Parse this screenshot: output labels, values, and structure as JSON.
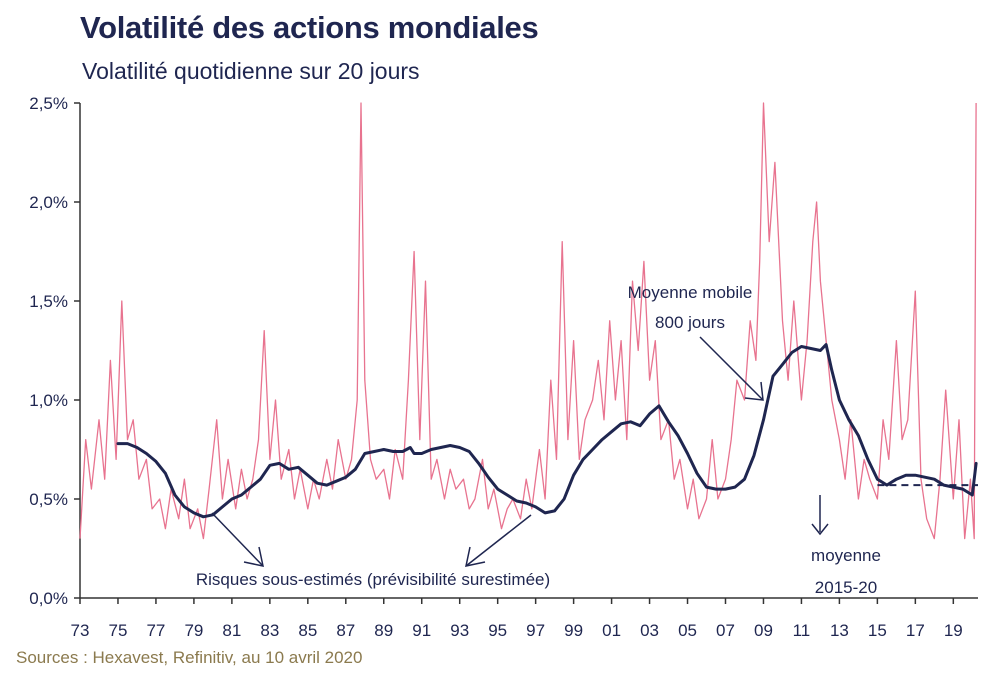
{
  "header": {
    "title": "Volatilité des actions mondiales",
    "subtitle": "Volatilité quotidienne sur 20 jours"
  },
  "footer": {
    "source": "Sources : Hexavest, Refinitiv, au 10 avril 2020"
  },
  "colors": {
    "daily": "#e8738f",
    "moving_average": "#1f2650",
    "text": "#1f2650",
    "source": "#8b7a4e"
  },
  "chart_data": {
    "type": "line",
    "title": "Volatilité des actions mondiales",
    "subtitle": "Volatilité quotidienne sur 20 jours",
    "xlim": [
      1973,
      2020.3
    ],
    "ylim": [
      0,
      2.5
    ],
    "grid": "none",
    "x_ticks": [
      1973,
      1975,
      1977,
      1979,
      1981,
      1983,
      1985,
      1987,
      1989,
      1991,
      1993,
      1995,
      1997,
      1999,
      2001,
      2003,
      2005,
      2007,
      2009,
      2011,
      2013,
      2015,
      2017,
      2019
    ],
    "x_tick_labels": [
      "73",
      "75",
      "77",
      "79",
      "81",
      "83",
      "85",
      "87",
      "89",
      "91",
      "93",
      "95",
      "97",
      "99",
      "01",
      "03",
      "05",
      "07",
      "09",
      "11",
      "13",
      "15",
      "17",
      "19"
    ],
    "y_ticks": [
      0,
      0.5,
      1.0,
      1.5,
      2.0,
      2.5
    ],
    "y_tick_labels": [
      "0,0%",
      "0,5%",
      "1,0%",
      "1,5%",
      "2,0%",
      "2,5%"
    ],
    "series": [
      {
        "name": "Volatilité quotidienne sur 20 jours",
        "style": "thin",
        "x": [
          1973.0,
          1973.3,
          1973.6,
          1974.0,
          1974.3,
          1974.6,
          1974.9,
          1975.2,
          1975.5,
          1975.8,
          1976.1,
          1976.5,
          1976.8,
          1977.2,
          1977.5,
          1977.8,
          1978.2,
          1978.5,
          1978.8,
          1979.2,
          1979.5,
          1979.8,
          1980.2,
          1980.5,
          1980.8,
          1981.2,
          1981.5,
          1981.8,
          1982.1,
          1982.4,
          1982.7,
          1983.0,
          1983.3,
          1983.6,
          1984.0,
          1984.3,
          1984.6,
          1985.0,
          1985.3,
          1985.6,
          1986.0,
          1986.3,
          1986.6,
          1987.0,
          1987.3,
          1987.6,
          1987.8,
          1988.0,
          1988.3,
          1988.6,
          1989.0,
          1989.3,
          1989.6,
          1990.0,
          1990.3,
          1990.6,
          1990.9,
          1991.2,
          1991.5,
          1991.8,
          1992.2,
          1992.5,
          1992.8,
          1993.2,
          1993.5,
          1993.8,
          1994.2,
          1994.5,
          1994.8,
          1995.2,
          1995.5,
          1995.8,
          1996.2,
          1996.5,
          1996.8,
          1997.2,
          1997.5,
          1997.8,
          1998.1,
          1998.4,
          1998.7,
          1999.0,
          1999.3,
          1999.6,
          2000.0,
          2000.3,
          2000.6,
          2000.9,
          2001.2,
          2001.5,
          2001.8,
          2002.1,
          2002.4,
          2002.7,
          2003.0,
          2003.3,
          2003.6,
          2004.0,
          2004.3,
          2004.6,
          2005.0,
          2005.3,
          2005.6,
          2006.0,
          2006.3,
          2006.6,
          2007.0,
          2007.3,
          2007.6,
          2008.0,
          2008.3,
          2008.6,
          2008.8,
          2009.0,
          2009.3,
          2009.6,
          2010.0,
          2010.3,
          2010.6,
          2011.0,
          2011.3,
          2011.6,
          2011.8,
          2012.0,
          2012.3,
          2012.6,
          2013.0,
          2013.3,
          2013.6,
          2014.0,
          2014.3,
          2014.6,
          2015.0,
          2015.3,
          2015.6,
          2016.0,
          2016.3,
          2016.6,
          2017.0,
          2017.3,
          2017.6,
          2018.0,
          2018.3,
          2018.6,
          2019.0,
          2019.3,
          2019.6,
          2019.9,
          2020.1,
          2020.2
        ],
        "y": [
          0.3,
          0.8,
          0.55,
          0.9,
          0.6,
          1.2,
          0.7,
          1.5,
          0.8,
          0.9,
          0.6,
          0.7,
          0.45,
          0.5,
          0.35,
          0.55,
          0.4,
          0.6,
          0.35,
          0.45,
          0.3,
          0.55,
          0.9,
          0.5,
          0.7,
          0.45,
          0.65,
          0.5,
          0.6,
          0.8,
          1.35,
          0.7,
          1.0,
          0.6,
          0.75,
          0.5,
          0.65,
          0.45,
          0.6,
          0.5,
          0.7,
          0.55,
          0.8,
          0.6,
          0.7,
          1.0,
          2.5,
          1.1,
          0.7,
          0.6,
          0.65,
          0.5,
          0.75,
          0.6,
          1.1,
          1.75,
          0.8,
          1.6,
          0.6,
          0.7,
          0.5,
          0.65,
          0.55,
          0.6,
          0.45,
          0.5,
          0.7,
          0.45,
          0.55,
          0.35,
          0.45,
          0.5,
          0.4,
          0.6,
          0.45,
          0.75,
          0.5,
          1.1,
          0.7,
          1.8,
          0.8,
          1.3,
          0.7,
          0.9,
          1.0,
          1.2,
          0.9,
          1.4,
          1.0,
          1.3,
          0.8,
          1.6,
          1.25,
          1.7,
          1.1,
          1.3,
          0.8,
          0.9,
          0.6,
          0.7,
          0.45,
          0.6,
          0.4,
          0.5,
          0.8,
          0.5,
          0.6,
          0.8,
          1.1,
          1.0,
          1.4,
          1.2,
          1.7,
          2.5,
          1.8,
          2.2,
          1.4,
          1.1,
          1.5,
          1.0,
          1.3,
          1.8,
          2.0,
          1.6,
          1.3,
          1.0,
          0.8,
          0.6,
          0.9,
          0.5,
          0.7,
          0.6,
          0.5,
          0.9,
          0.7,
          1.3,
          0.8,
          0.9,
          1.55,
          0.6,
          0.4,
          0.3,
          0.6,
          1.05,
          0.5,
          0.9,
          0.3,
          0.6,
          0.3,
          2.5
        ]
      },
      {
        "name": "Moyenne mobile 800 jours",
        "style": "thick",
        "x": [
          1975.0,
          1975.5,
          1976.0,
          1976.5,
          1977.0,
          1977.5,
          1978.0,
          1978.5,
          1979.0,
          1979.5,
          1980.0,
          1980.5,
          1981.0,
          1981.5,
          1982.0,
          1982.5,
          1983.0,
          1983.5,
          1984.0,
          1984.5,
          1985.0,
          1985.5,
          1986.0,
          1986.5,
          1987.0,
          1987.5,
          1988.0,
          1988.5,
          1989.0,
          1989.5,
          1990.0,
          1990.4,
          1990.6,
          1991.0,
          1991.5,
          1992.0,
          1992.5,
          1993.0,
          1993.5,
          1994.0,
          1994.5,
          1995.0,
          1995.5,
          1996.0,
          1996.5,
          1997.0,
          1997.5,
          1998.0,
          1998.5,
          1999.0,
          1999.5,
          2000.0,
          2000.5,
          2001.0,
          2001.5,
          2002.0,
          2002.5,
          2003.0,
          2003.5,
          2004.0,
          2004.5,
          2005.0,
          2005.5,
          2006.0,
          2006.5,
          2007.0,
          2007.5,
          2008.0,
          2008.5,
          2009.0,
          2009.5,
          2010.0,
          2010.5,
          2011.0,
          2011.5,
          2012.0,
          2012.3,
          2012.6,
          2013.0,
          2013.5,
          2014.0,
          2014.5,
          2015.0,
          2015.5,
          2016.0,
          2016.5,
          2017.0,
          2017.5,
          2018.0,
          2018.5,
          2019.0,
          2019.5,
          2020.0,
          2020.2
        ],
        "y": [
          0.78,
          0.78,
          0.76,
          0.73,
          0.69,
          0.63,
          0.52,
          0.46,
          0.43,
          0.41,
          0.42,
          0.46,
          0.5,
          0.52,
          0.56,
          0.6,
          0.67,
          0.68,
          0.65,
          0.66,
          0.62,
          0.58,
          0.57,
          0.59,
          0.61,
          0.65,
          0.73,
          0.74,
          0.75,
          0.74,
          0.74,
          0.76,
          0.73,
          0.73,
          0.75,
          0.76,
          0.77,
          0.76,
          0.74,
          0.68,
          0.61,
          0.55,
          0.52,
          0.49,
          0.48,
          0.46,
          0.43,
          0.44,
          0.5,
          0.62,
          0.7,
          0.75,
          0.8,
          0.84,
          0.88,
          0.89,
          0.87,
          0.93,
          0.97,
          0.89,
          0.82,
          0.73,
          0.63,
          0.56,
          0.55,
          0.55,
          0.56,
          0.6,
          0.72,
          0.9,
          1.12,
          1.18,
          1.24,
          1.27,
          1.26,
          1.25,
          1.28,
          1.15,
          1.0,
          0.9,
          0.82,
          0.7,
          0.6,
          0.57,
          0.6,
          0.62,
          0.62,
          0.61,
          0.6,
          0.57,
          0.56,
          0.55,
          0.52,
          0.68
        ]
      },
      {
        "name": "moyenne 2015-20",
        "style": "dashed",
        "x": [
          2015.0,
          2020.3
        ],
        "y": [
          0.57,
          0.57
        ]
      }
    ],
    "annotations": [
      {
        "text_lines": [
          "Moyenne mobile",
          "800 jours"
        ]
      },
      {
        "text_lines": [
          "Risques sous-estimés (prévisibilité surestimée)"
        ]
      },
      {
        "text_lines": [
          "moyenne",
          "2015-20"
        ]
      }
    ]
  }
}
